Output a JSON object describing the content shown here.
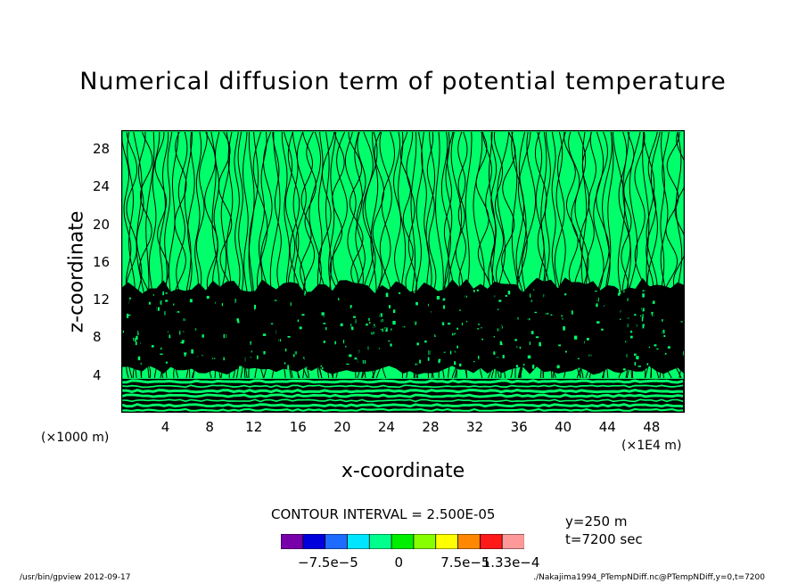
{
  "chart_data": {
    "type": "heatmap",
    "title": "Numerical diffusion term of potential temperature",
    "xlabel": "x-coordinate",
    "ylabel": "z-coordinate",
    "x_ticks": [
      "4",
      "8",
      "12",
      "16",
      "20",
      "24",
      "28",
      "32",
      "36",
      "40",
      "44",
      "48"
    ],
    "y_ticks": [
      "4",
      "8",
      "12",
      "16",
      "20",
      "24",
      "28"
    ],
    "x_unit_left": "(×1000 m)",
    "x_unit_right": "(×1E4 m)",
    "xlim": [
      0,
      51
    ],
    "ylim": [
      0,
      30
    ],
    "contour_interval": "CONTOUR INTERVAL = 2.500E-05",
    "colorbar": {
      "colors": [
        "#7700aa",
        "#0000dd",
        "#1e6bff",
        "#00e5ff",
        "#00ff8c",
        "#00ee00",
        "#88ff00",
        "#ffff00",
        "#ff8800",
        "#ff1a1a",
        "#ff9999"
      ],
      "labels": [
        "−7.5e−5",
        "0",
        "7.5e−5",
        "1.33e−4"
      ],
      "label_values": [
        -7.5e-05,
        0,
        7.5e-05,
        0.000133
      ],
      "range": [
        -0.000125,
        0.000133
      ]
    },
    "colors": {
      "background": "#00ff6a",
      "contour": "#000000"
    }
  },
  "annotations": {
    "y_info": "y=250 m",
    "t_info": "t=7200 sec"
  },
  "footer": {
    "left": "/usr/bin/gpview   2012-09-17",
    "right": "./Nakajima1994_PTempNDiff.nc@PTempNDiff,y=0,t=7200"
  }
}
